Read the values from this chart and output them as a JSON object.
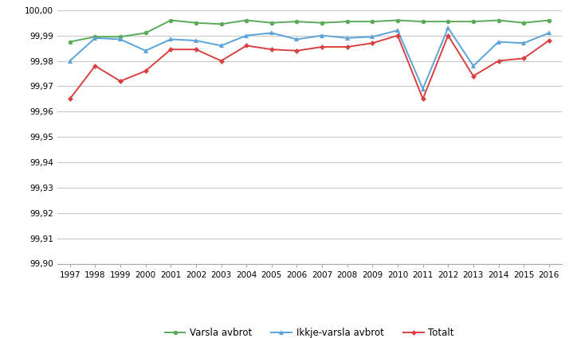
{
  "years": [
    1997,
    1998,
    1999,
    2000,
    2001,
    2002,
    2003,
    2004,
    2005,
    2006,
    2007,
    2008,
    2009,
    2010,
    2011,
    2012,
    2013,
    2014,
    2015,
    2016
  ],
  "varsla": [
    99.9875,
    99.9895,
    99.9895,
    99.991,
    99.996,
    99.995,
    99.9945,
    99.996,
    99.995,
    99.9955,
    99.995,
    99.9955,
    99.9955,
    99.996,
    99.9955,
    99.9955,
    99.9955,
    99.996,
    99.995,
    99.996
  ],
  "ikkje_varsla": [
    99.98,
    99.989,
    99.9885,
    99.984,
    99.9885,
    99.988,
    99.986,
    99.99,
    99.991,
    99.9885,
    99.99,
    99.989,
    99.9895,
    99.992,
    99.969,
    99.993,
    99.978,
    99.9875,
    99.987,
    99.991
  ],
  "totalt": [
    99.965,
    99.978,
    99.972,
    99.976,
    99.9845,
    99.9845,
    99.98,
    99.986,
    99.9845,
    99.984,
    99.9855,
    99.9855,
    99.987,
    99.99,
    99.965,
    99.99,
    99.974,
    99.98,
    99.981,
    99.988
  ],
  "ylim": [
    99.9,
    100.0
  ],
  "yticks": [
    99.9,
    99.91,
    99.92,
    99.93,
    99.94,
    99.95,
    99.96,
    99.97,
    99.98,
    99.99,
    100.0
  ],
  "color_varsla": "#5aaa5a",
  "color_ikkje": "#5ba3d9",
  "color_totalt": "#d94040",
  "legend_varsla": "Varsla avbrot",
  "legend_ikkje": "Ikkje-varsla avbrot",
  "legend_totalt": "Totalt",
  "background_color": "#ffffff",
  "grid_color": "#c8c8c8"
}
